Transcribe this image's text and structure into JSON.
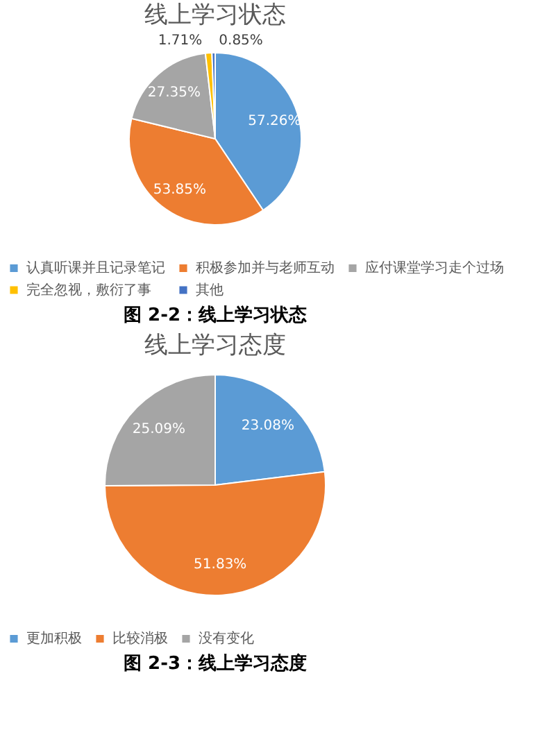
{
  "chart_data": [
    {
      "type": "pie",
      "title": "线上学习状态",
      "categories": [
        "认真听课并且记录笔记",
        "积极参加并与老师互动",
        "应付课堂学习走个过场",
        "完全忽视，敷衍了事",
        "其他"
      ],
      "values": [
        57.26,
        53.85,
        27.35,
        1.71,
        0.85
      ],
      "colors": [
        "#5b9bd5",
        "#ed7d31",
        "#a5a5a5",
        "#ffc000",
        "#4472c4"
      ],
      "value_labels": [
        "57.26%",
        "53.85%",
        "27.35%",
        "1.71%",
        "0.85%"
      ],
      "legend": "bottom",
      "annotations": [
        "图 2-2：线上学习状态"
      ]
    },
    {
      "type": "pie",
      "title": "线上学习态度",
      "categories": [
        "更加积极",
        "比较消极",
        "没有变化"
      ],
      "values": [
        23.08,
        51.83,
        25.09
      ],
      "colors": [
        "#5b9bd5",
        "#ed7d31",
        "#a5a5a5"
      ],
      "value_labels": [
        "23.08%",
        "51.83%",
        "25.09%"
      ],
      "legend": "bottom",
      "annotations": [
        "图 2-3：线上学习态度"
      ]
    }
  ]
}
